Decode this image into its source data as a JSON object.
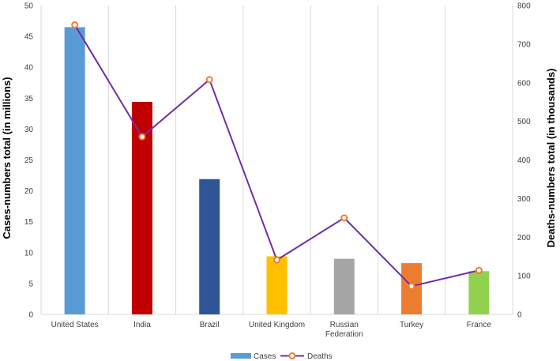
{
  "chart_data": {
    "type": "bar",
    "categories": [
      "United States",
      "India",
      "Brazil",
      "United Kingdom",
      "Russian Federation",
      "Turkey",
      "France"
    ],
    "series": [
      {
        "name": "Cases",
        "type": "bar",
        "axis": "left",
        "values": [
          46.5,
          34.4,
          21.9,
          9.4,
          9.0,
          8.3,
          7.0
        ],
        "colors": [
          "#5b9bd5",
          "#c00000",
          "#2f5597",
          "#ffc000",
          "#a5a5a5",
          "#ed7d31",
          "#92d050"
        ]
      },
      {
        "name": "Deaths",
        "type": "line",
        "axis": "right",
        "values": [
          750,
          460,
          608,
          141,
          250,
          73,
          114
        ],
        "line_color": "#7030a0",
        "marker_color": "#ed7d31"
      }
    ],
    "ylabel": "Cases-numbers total (in millions)",
    "y2label": "Deaths-numbers total (in thousands)",
    "ylim": [
      0,
      50
    ],
    "y2lim": [
      0,
      800
    ],
    "yticks": [
      0,
      5,
      10,
      15,
      20,
      25,
      30,
      35,
      40,
      45,
      50
    ],
    "y2ticks": [
      0,
      100,
      200,
      300,
      400,
      500,
      600,
      700,
      800
    ],
    "grid": "vertical",
    "legend": "bottom-center"
  }
}
